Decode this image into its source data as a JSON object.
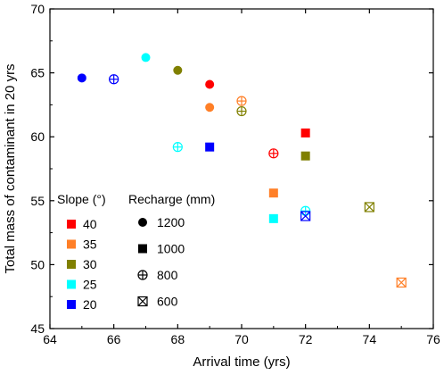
{
  "chart_data": {
    "type": "scatter",
    "xlabel": "Arrival time (yrs)",
    "ylabel": "Total mass of contaminant in 20 yrs",
    "xlim": [
      64,
      76
    ],
    "ylim": [
      45,
      70
    ],
    "xticks": [
      "64",
      "66",
      "68",
      "70",
      "72",
      "74",
      "76"
    ],
    "yticks": [
      "45",
      "50",
      "55",
      "60",
      "65",
      "70"
    ],
    "grid": false,
    "legend_slope": {
      "title": "Slope (°)",
      "items": [
        {
          "label": "40",
          "color": "#ff0000"
        },
        {
          "label": "35",
          "color": "#ff7f27"
        },
        {
          "label": "30",
          "color": "#808000"
        },
        {
          "label": "25",
          "color": "#00ffff"
        },
        {
          "label": "20",
          "color": "#0000ff"
        }
      ]
    },
    "legend_recharge": {
      "title": "Recharge (mm)",
      "items": [
        {
          "label": "1200",
          "marker": "circle"
        },
        {
          "label": "1000",
          "marker": "square"
        },
        {
          "label": "800",
          "marker": "circle-plus"
        },
        {
          "label": "600",
          "marker": "square-x"
        }
      ]
    },
    "points": [
      {
        "x": 65,
        "y": 64.6,
        "slope": "20",
        "recharge": "1200"
      },
      {
        "x": 66,
        "y": 64.5,
        "slope": "20",
        "recharge": "800"
      },
      {
        "x": 67,
        "y": 66.2,
        "slope": "25",
        "recharge": "1200"
      },
      {
        "x": 68,
        "y": 65.2,
        "slope": "30",
        "recharge": "1200"
      },
      {
        "x": 69,
        "y": 64.1,
        "slope": "40",
        "recharge": "1200"
      },
      {
        "x": 69,
        "y": 62.3,
        "slope": "35",
        "recharge": "1200"
      },
      {
        "x": 70,
        "y": 62.8,
        "slope": "35",
        "recharge": "800"
      },
      {
        "x": 70,
        "y": 62.0,
        "slope": "30",
        "recharge": "800"
      },
      {
        "x": 68,
        "y": 59.2,
        "slope": "25",
        "recharge": "800"
      },
      {
        "x": 69,
        "y": 59.2,
        "slope": "20",
        "recharge": "1000"
      },
      {
        "x": 71,
        "y": 58.7,
        "slope": "40",
        "recharge": "800"
      },
      {
        "x": 72,
        "y": 60.3,
        "slope": "40",
        "recharge": "1000"
      },
      {
        "x": 72,
        "y": 58.5,
        "slope": "30",
        "recharge": "1000"
      },
      {
        "x": 71,
        "y": 55.6,
        "slope": "35",
        "recharge": "1000"
      },
      {
        "x": 71,
        "y": 53.6,
        "slope": "25",
        "recharge": "1000"
      },
      {
        "x": 72,
        "y": 54.2,
        "slope": "25",
        "recharge": "800"
      },
      {
        "x": 72,
        "y": 53.8,
        "slope": "20",
        "recharge": "600"
      },
      {
        "x": 74,
        "y": 54.5,
        "slope": "30",
        "recharge": "600"
      },
      {
        "x": 75,
        "y": 48.6,
        "slope": "35",
        "recharge": "600"
      }
    ]
  }
}
